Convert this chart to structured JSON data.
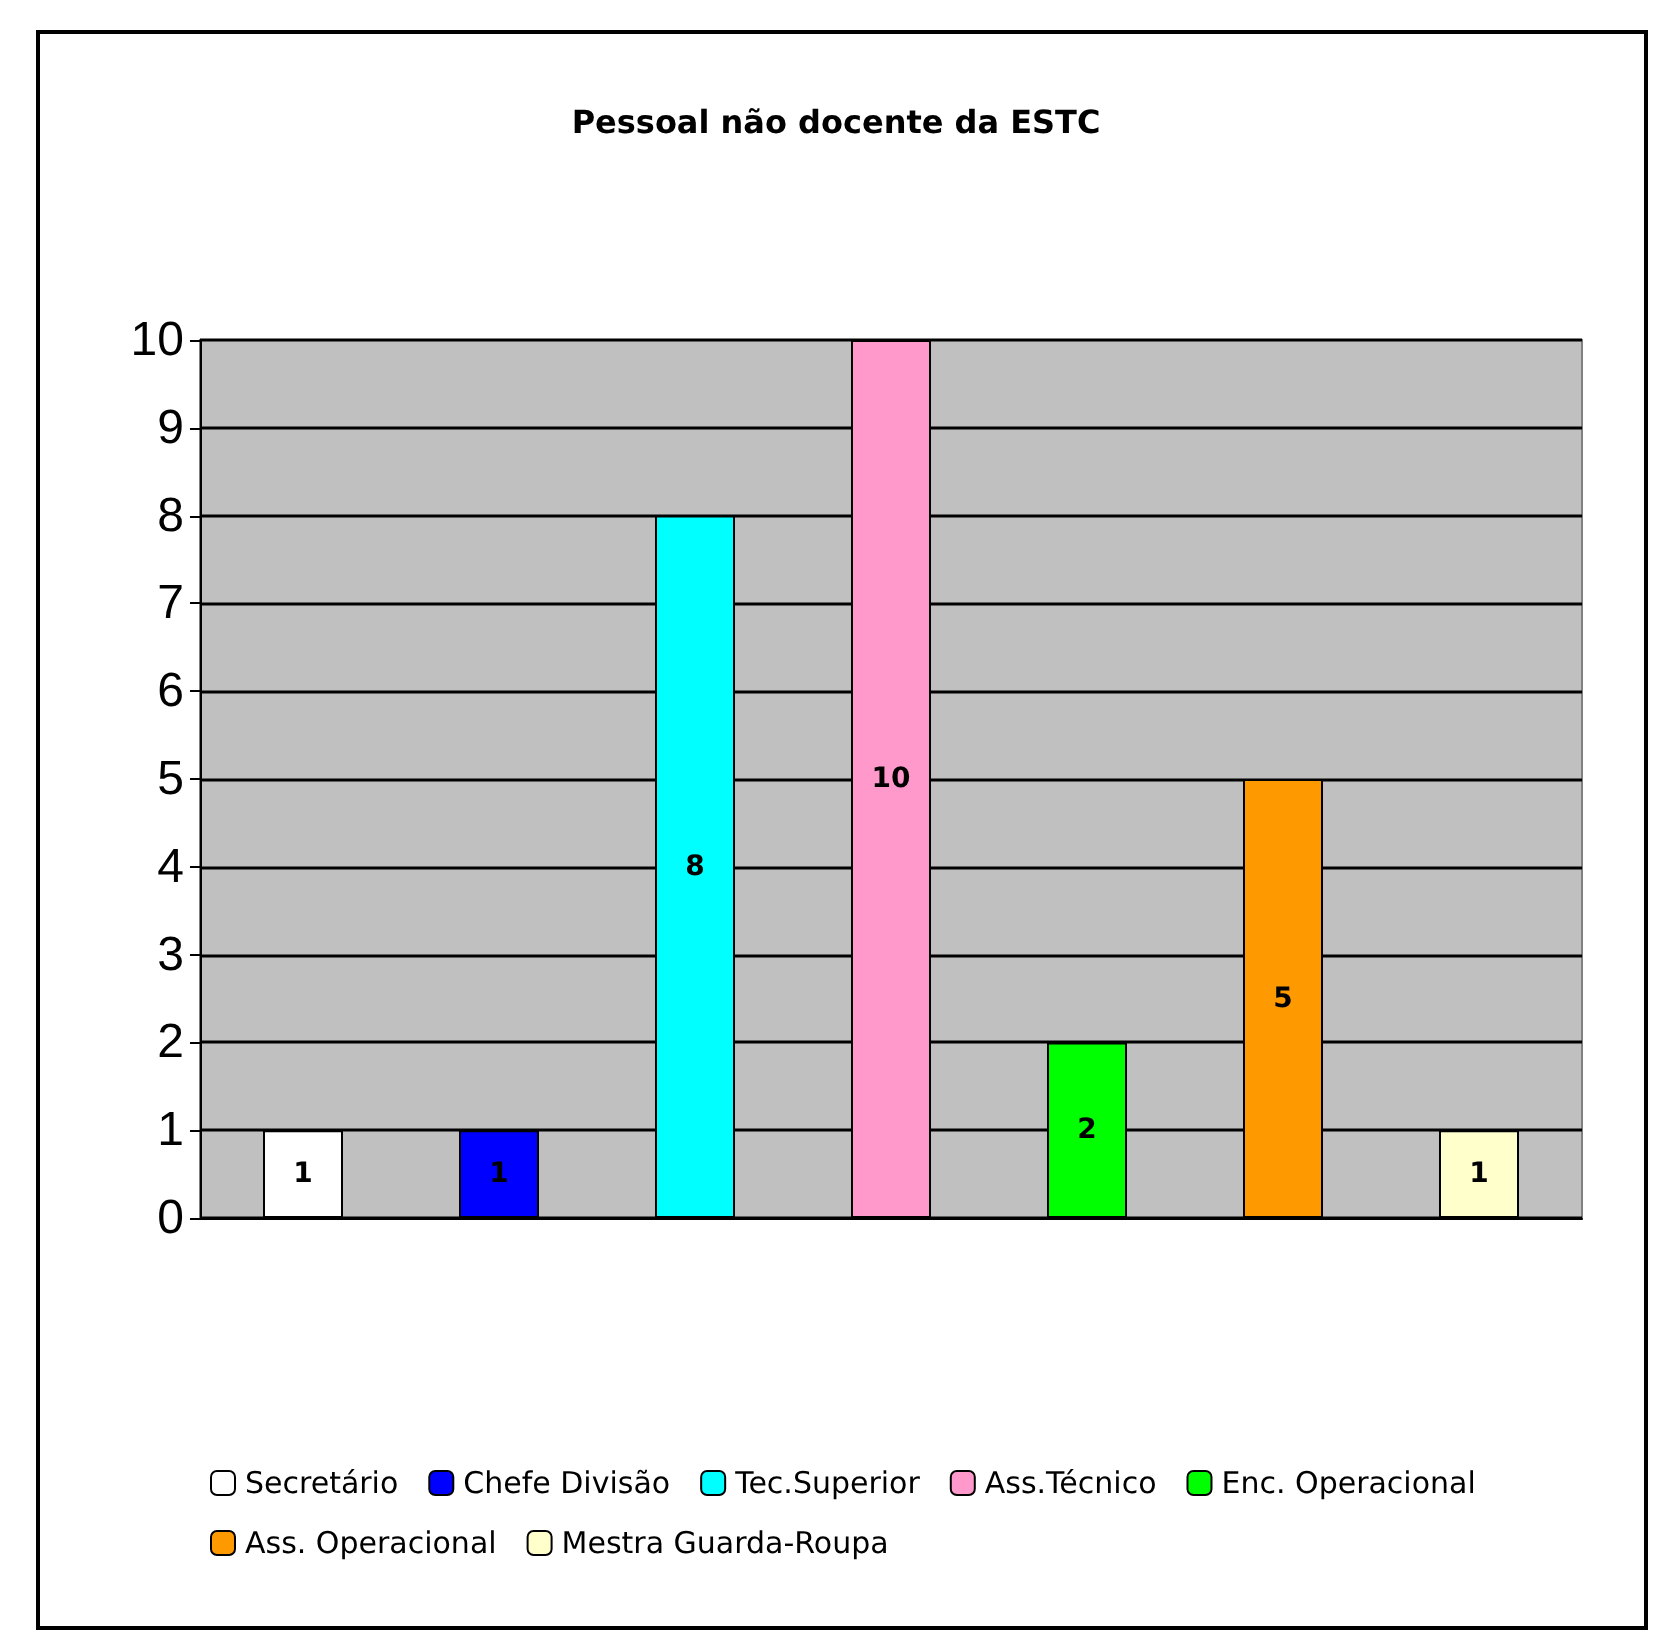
{
  "chart_data": {
    "type": "bar",
    "title": "Pessoal não docente da ESTC",
    "categories": [
      null
    ],
    "series": [
      {
        "name": "Secretário",
        "color": "#ffffff",
        "values": [
          1
        ]
      },
      {
        "name": "Chefe Divisão",
        "color": "#0000ff",
        "values": [
          1
        ]
      },
      {
        "name": "Tec.Superior",
        "color": "#00ffff",
        "values": [
          8
        ]
      },
      {
        "name": "Ass.Técnico",
        "color": "#ff99cc",
        "values": [
          10
        ]
      },
      {
        "name": "Enc. Operacional",
        "color": "#00ff00",
        "values": [
          2
        ]
      },
      {
        "name": "Ass. Operacional",
        "color": "#ff9900",
        "values": [
          5
        ]
      },
      {
        "name": "Mestra Guarda-Roupa",
        "color": "#ffffcc",
        "values": [
          1
        ]
      }
    ],
    "ylim": [
      0,
      10
    ],
    "yticks": [
      0,
      1,
      2,
      3,
      4,
      5,
      6,
      7,
      8,
      9,
      10
    ],
    "grid": "y",
    "legend": "bottom",
    "data_labels": true
  }
}
